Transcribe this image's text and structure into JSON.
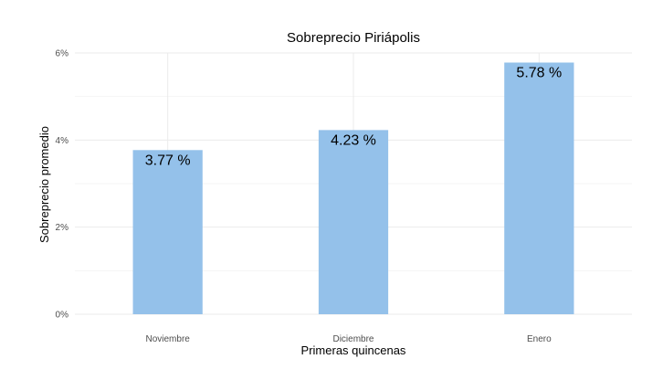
{
  "chart_data": {
    "type": "bar",
    "title": "Sobreprecio Piriápolis",
    "xlabel": "Primeras quincenas",
    "ylabel": "Sobreprecio promedio",
    "categories": [
      "Noviembre",
      "Diciembre",
      "Enero"
    ],
    "values": [
      3.77,
      4.23,
      5.78
    ],
    "value_labels": [
      "3.77 %",
      "4.23 %",
      "5.78 %"
    ],
    "ylim": [
      0,
      6
    ],
    "yticks": [
      0,
      2,
      4,
      6
    ],
    "ytick_labels": [
      "0%",
      "2%",
      "4%",
      "6%"
    ],
    "grid": true,
    "legend": "none",
    "colors": {
      "bar": "#94c1ea",
      "grid_major": "#ebebeb",
      "grid_minor": "#f5f5f5",
      "text": "#000000",
      "tick_text": "#4d4d4d"
    }
  }
}
